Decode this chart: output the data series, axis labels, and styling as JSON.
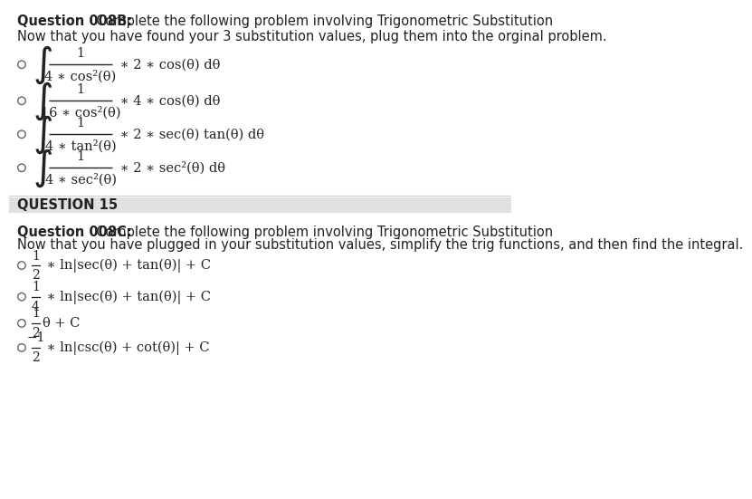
{
  "bg_color": "#ffffff",
  "title1_bold": "Question 008B:",
  "title1_rest": "  Complete the following problem involving Trigonometric Substitution",
  "subtitle1": "Now that you have found your 3 substitution values, plug them into the orginal problem.",
  "section2_header": "QUESTION 15",
  "title2_bold": "Question 008C:",
  "title2_rest": "  Complete the following problem involving Trigonometric Substitution",
  "subtitle2": "Now that you have plugged in your substitution values, simplify the trig functions, and then find the integral.",
  "options_q008b": [
    {
      "frac_num": "1",
      "frac_den": "4 ∗ cos²(θ)",
      "right": " ∗ 2 ∗ cos(θ) dθ"
    },
    {
      "frac_num": "1",
      "frac_den": "16 ∗ cos²(θ)",
      "right": " ∗ 4 ∗ cos(θ) dθ"
    },
    {
      "frac_num": "1",
      "frac_den": "4 ∗ tan²(θ)",
      "right": " ∗ 2 ∗ sec(θ) tan(θ) dθ"
    },
    {
      "frac_num": "1",
      "frac_den": "4 ∗ sec²(θ)",
      "right": " ∗ 2 ∗ sec²(θ) dθ"
    }
  ],
  "text_color": "#222222",
  "header_bg": "#e0e0e0",
  "circle_color": "#666666",
  "line_color": "#cccccc",
  "font_size": 10.5
}
